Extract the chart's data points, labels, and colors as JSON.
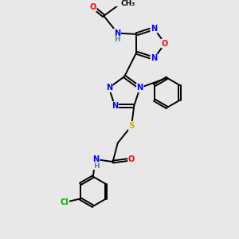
{
  "bg_color": "#e8e8e8",
  "atom_colors": {
    "C": "#000000",
    "N": "#0000ff",
    "O": "#ff0000",
    "S": "#ccaa00",
    "H": "#4a9090",
    "Cl": "#00aa00"
  },
  "bond_color": "#000000"
}
